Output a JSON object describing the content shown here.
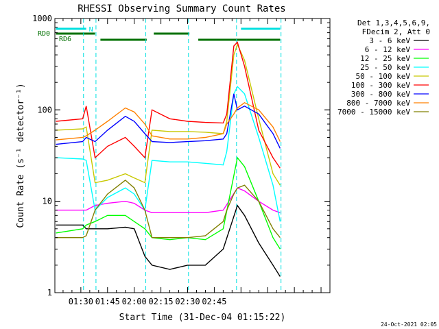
{
  "chart_data": {
    "type": "line",
    "title": "RHESSI Observing Summary Count Rates",
    "xlabel": "Start Time (31-Dec-04 01:15:22)",
    "ylabel": "Count Rate (s⁻¹ detector⁻¹)",
    "yscale": "log",
    "ylim": [
      1,
      1000
    ],
    "xlim_minutes": [
      15.4,
      170.0
    ],
    "x_tick_labels": [
      "01:30",
      "01:45",
      "02:00",
      "02:15",
      "02:30",
      "02:45"
    ],
    "x_tick_minutes": [
      30,
      45,
      60,
      75,
      90,
      105
    ],
    "y_tick_labels": [
      "1",
      "10",
      "100",
      "1000"
    ],
    "legend": {
      "placement": "right",
      "header": [
        "Det 1,3,4,5,6,9,",
        "FDecim 2, Att 0"
      ]
    },
    "flags": [
      {
        "label": "N",
        "color": "#00e0e0",
        "bars_minutes": [
          [
            16,
            33
          ],
          [
            120,
            142
          ]
        ]
      },
      {
        "label": "RD0",
        "color": "#007000",
        "bars_minutes": [
          [
            16,
            38
          ],
          [
            71,
            91
          ]
        ]
      },
      {
        "label": "RD6",
        "color": "#007000",
        "bars_minutes": [
          [
            41,
            67
          ],
          [
            96,
            142
          ]
        ]
      }
    ],
    "night_lines_minutes": [
      31.5,
      38.5,
      66.5,
      90.5,
      117.5,
      142.5
    ],
    "series": [
      {
        "name": "3 - 6 keV",
        "color": "#000000",
        "x": [
          16,
          31,
          33,
          38,
          45,
          55,
          60,
          66,
          70,
          80,
          90,
          100,
          110,
          118,
          122,
          130,
          138,
          142
        ],
        "y": [
          5.5,
          5.5,
          5,
          5,
          5,
          5.2,
          5,
          2.5,
          2,
          1.8,
          2,
          2,
          3,
          9,
          7,
          3.5,
          2,
          1.5
        ]
      },
      {
        "name": "6 - 12 keV",
        "color": "#ff00ff",
        "x": [
          16,
          31,
          33,
          38,
          45,
          55,
          60,
          66,
          70,
          80,
          90,
          100,
          110,
          118,
          122,
          130,
          138,
          142
        ],
        "y": [
          8,
          8,
          8,
          9,
          9.5,
          10,
          9.5,
          8,
          7.5,
          7.5,
          7.5,
          7.5,
          8,
          14,
          13,
          10,
          8,
          7.5
        ]
      },
      {
        "name": "12 - 25 keV",
        "color": "#00ff00",
        "x": [
          16,
          31,
          33,
          38,
          45,
          55,
          60,
          66,
          70,
          80,
          90,
          100,
          110,
          118,
          122,
          130,
          138,
          142
        ],
        "y": [
          4.5,
          5,
          5.5,
          6,
          7,
          7,
          6,
          5,
          4,
          3.8,
          4,
          3.8,
          5,
          30,
          24,
          10,
          4,
          3
        ]
      },
      {
        "name": "25 - 50 keV",
        "color": "#00ffff",
        "x": [
          16,
          31,
          33,
          38,
          45,
          55,
          60,
          66,
          70,
          80,
          90,
          100,
          110,
          112,
          116,
          118,
          122,
          130,
          138,
          142
        ],
        "y": [
          30,
          29,
          28,
          8,
          11,
          14,
          12,
          8,
          28,
          27,
          27,
          26,
          25,
          35,
          150,
          180,
          150,
          50,
          15,
          6
        ]
      },
      {
        "name": "50 - 100 keV",
        "color": "#c8c800",
        "x": [
          16,
          31,
          33,
          38,
          45,
          55,
          60,
          66,
          70,
          80,
          90,
          100,
          110,
          112,
          116,
          118,
          122,
          130,
          138,
          142
        ],
        "y": [
          60,
          62,
          65,
          16,
          17,
          20,
          18,
          16,
          60,
          58,
          58,
          57,
          55,
          75,
          400,
          520,
          350,
          80,
          20,
          15
        ]
      },
      {
        "name": "100 - 300 keV",
        "color": "#ff0000",
        "x": [
          16,
          31,
          33,
          38,
          45,
          55,
          60,
          66,
          70,
          80,
          90,
          100,
          110,
          112,
          116,
          118,
          122,
          130,
          138,
          142
        ],
        "y": [
          75,
          80,
          110,
          30,
          40,
          50,
          40,
          30,
          100,
          80,
          75,
          73,
          72,
          90,
          500,
          550,
          300,
          60,
          30,
          23
        ]
      },
      {
        "name": "300 - 800 keV",
        "color": "#0000ff",
        "x": [
          16,
          31,
          33,
          38,
          45,
          55,
          60,
          66,
          70,
          80,
          90,
          100,
          110,
          112,
          116,
          118,
          122,
          130,
          138,
          142
        ],
        "y": [
          42,
          45,
          50,
          45,
          60,
          85,
          75,
          55,
          45,
          44,
          45,
          46,
          48,
          55,
          150,
          100,
          110,
          90,
          55,
          38
        ]
      },
      {
        "name": "800 - 7000 keV",
        "color": "#ff8000",
        "x": [
          16,
          31,
          33,
          38,
          45,
          55,
          60,
          66,
          70,
          80,
          90,
          100,
          110,
          112,
          116,
          118,
          122,
          130,
          138,
          142
        ],
        "y": [
          47,
          50,
          52,
          60,
          75,
          105,
          95,
          70,
          52,
          48,
          48,
          50,
          55,
          70,
          90,
          105,
          120,
          100,
          65,
          45
        ]
      },
      {
        "name": "7000 - 15000 keV",
        "color": "#808000",
        "x": [
          16,
          31,
          33,
          38,
          45,
          55,
          60,
          66,
          70,
          80,
          90,
          100,
          110,
          112,
          116,
          118,
          122,
          130,
          138,
          142
        ],
        "y": [
          4,
          4,
          4.2,
          8,
          12,
          17,
          14,
          8,
          4,
          4,
          4,
          4.2,
          6,
          8,
          12,
          14,
          15,
          10,
          5,
          4
        ]
      }
    ]
  },
  "timestamp": "24-Oct-2021 02:05"
}
